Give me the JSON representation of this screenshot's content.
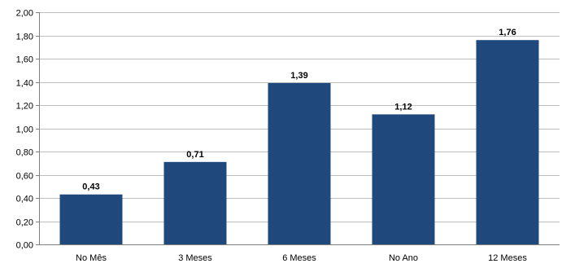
{
  "chart_data": {
    "type": "bar",
    "categories": [
      "No Mês",
      "3 Meses",
      "6 Meses",
      "No Ano",
      "12 Meses"
    ],
    "values": [
      0.43,
      0.71,
      1.39,
      1.12,
      1.76
    ],
    "value_labels": [
      "0,43",
      "0,71",
      "1,39",
      "1,12",
      "1,76"
    ],
    "ylim": [
      0,
      2
    ],
    "yticks": [
      0,
      0.2,
      0.4,
      0.6,
      0.8,
      1.0,
      1.2,
      1.4,
      1.6,
      1.8,
      2.0
    ],
    "ytick_labels": [
      "0,00",
      "0,20",
      "0,40",
      "0,60",
      "0,80",
      "1,00",
      "1,20",
      "1,40",
      "1,60",
      "1,80",
      "2,00"
    ],
    "title": "",
    "xlabel": "",
    "ylabel": "",
    "grid": true,
    "legend": "none",
    "colors": {
      "bar": "#1F497D",
      "grid": "#BFBFBF",
      "axis": "#808080"
    }
  }
}
